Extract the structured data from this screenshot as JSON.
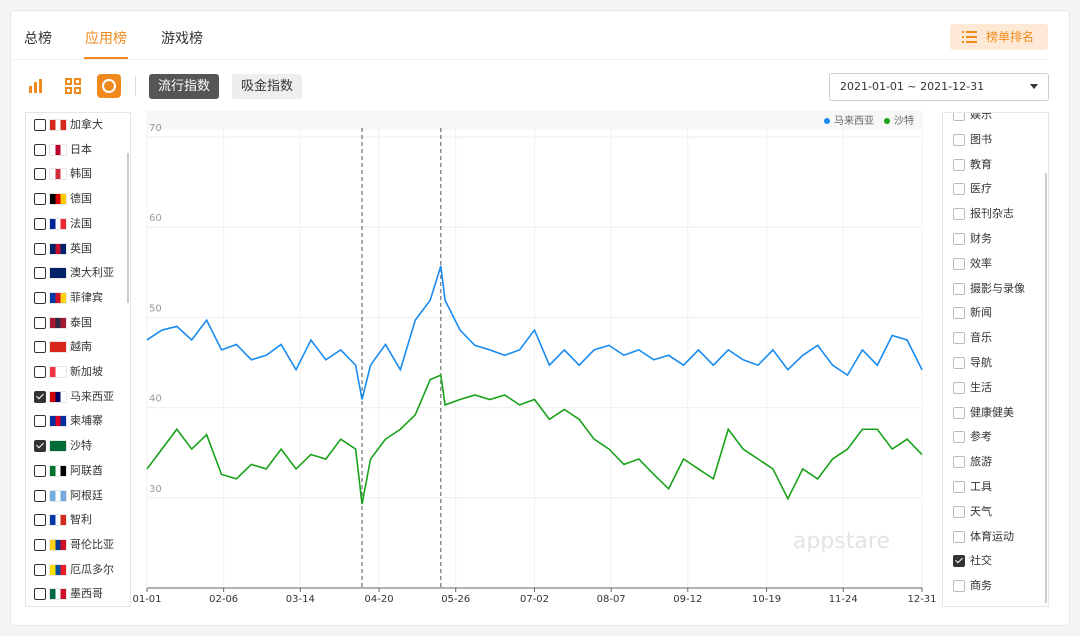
{
  "tabs": [
    "总榜",
    "应用榜",
    "游戏榜"
  ],
  "active_tab": 1,
  "rank_button": "榜单排名",
  "index_buttons": [
    "流行指数",
    "吸金指数"
  ],
  "active_index": 0,
  "date_range": "2021-01-01 ~ 2021-12-31",
  "countries": [
    {
      "name": "加拿大",
      "checked": false
    },
    {
      "name": "日本",
      "checked": false
    },
    {
      "name": "韩国",
      "checked": false
    },
    {
      "name": "德国",
      "checked": false
    },
    {
      "name": "法国",
      "checked": false
    },
    {
      "name": "英国",
      "checked": false
    },
    {
      "name": "澳大利亚",
      "checked": false
    },
    {
      "name": "菲律宾",
      "checked": false
    },
    {
      "name": "泰国",
      "checked": false
    },
    {
      "name": "越南",
      "checked": false
    },
    {
      "name": "新加坡",
      "checked": false
    },
    {
      "name": "马来西亚",
      "checked": true
    },
    {
      "name": "柬埔寨",
      "checked": false
    },
    {
      "name": "沙特",
      "checked": true
    },
    {
      "name": "阿联酋",
      "checked": false
    },
    {
      "name": "阿根廷",
      "checked": false
    },
    {
      "name": "智利",
      "checked": false
    },
    {
      "name": "哥伦比亚",
      "checked": false
    },
    {
      "name": "厄瓜多尔",
      "checked": false
    },
    {
      "name": "墨西哥",
      "checked": false
    }
  ],
  "app_categories": [
    {
      "name": "娱乐",
      "checked": false
    },
    {
      "name": "图书",
      "checked": false
    },
    {
      "name": "教育",
      "checked": false
    },
    {
      "name": "医疗",
      "checked": false
    },
    {
      "name": "报刊杂志",
      "checked": false
    },
    {
      "name": "财务",
      "checked": false
    },
    {
      "name": "效率",
      "checked": false
    },
    {
      "name": "摄影与录像",
      "checked": false
    },
    {
      "name": "新闻",
      "checked": false
    },
    {
      "name": "音乐",
      "checked": false
    },
    {
      "name": "导航",
      "checked": false
    },
    {
      "name": "生活",
      "checked": false
    },
    {
      "name": "健康健美",
      "checked": false
    },
    {
      "name": "参考",
      "checked": false
    },
    {
      "name": "旅游",
      "checked": false
    },
    {
      "name": "工具",
      "checked": false
    },
    {
      "name": "天气",
      "checked": false
    },
    {
      "name": "体育运动",
      "checked": false
    },
    {
      "name": "社交",
      "checked": true
    },
    {
      "name": "商务",
      "checked": false
    }
  ],
  "watermark": "appstare",
  "chart_data": {
    "type": "line",
    "x": [
      "01-01",
      "01-08",
      "01-15",
      "01-22",
      "01-29",
      "02-05",
      "02-12",
      "02-19",
      "02-26",
      "03-05",
      "03-12",
      "03-19",
      "03-26",
      "04-02",
      "04-09",
      "04-12",
      "04-16",
      "04-23",
      "04-30",
      "05-07",
      "05-14",
      "05-19",
      "05-21",
      "05-28",
      "06-04",
      "06-11",
      "06-18",
      "06-25",
      "07-02",
      "07-09",
      "07-16",
      "07-23",
      "07-30",
      "08-06",
      "08-13",
      "08-20",
      "08-27",
      "09-03",
      "09-10",
      "09-17",
      "09-24",
      "10-01",
      "10-08",
      "10-15",
      "10-22",
      "10-29",
      "11-05",
      "11-12",
      "11-19",
      "11-26",
      "12-03",
      "12-10",
      "12-17",
      "12-24",
      "12-31"
    ],
    "series": [
      {
        "name": "马来西亚",
        "color": "#1a8cf0",
        "values": [
          47.5,
          48.6,
          49,
          47.5,
          49.7,
          46.4,
          47,
          45.3,
          45.8,
          47,
          44.2,
          47.5,
          45.3,
          46.4,
          44.7,
          40.9,
          44.7,
          47,
          44.2,
          49.7,
          51.9,
          55.7,
          51.9,
          48.6,
          46.9,
          46.4,
          45.8,
          46.4,
          48.6,
          44.7,
          46.4,
          44.7,
          46.4,
          46.9,
          45.8,
          46.4,
          45.3,
          45.8,
          44.7,
          46.4,
          44.7,
          46.4,
          45.3,
          44.7,
          46.4,
          44.2,
          45.8,
          46.9,
          44.7,
          43.6,
          46.4,
          44.7,
          48,
          47.5,
          44.2
        ]
      },
      {
        "name": "沙特",
        "color": "#1aa11a",
        "values": [
          33.2,
          35.4,
          37.6,
          35.4,
          37,
          32.6,
          32.1,
          33.7,
          33.2,
          35.4,
          33.2,
          34.8,
          34.3,
          36.5,
          35.4,
          29.3,
          34.3,
          36.5,
          37.6,
          39.2,
          43.1,
          43.6,
          40.3,
          40.9,
          41.4,
          40.9,
          41.4,
          40.3,
          40.9,
          38.7,
          39.8,
          38.7,
          36.5,
          35.4,
          33.7,
          34.3,
          32.6,
          31,
          34.3,
          33.2,
          32.1,
          37.6,
          35.4,
          34.3,
          33.2,
          29.9,
          33.2,
          32.1,
          34.3,
          35.4,
          37.6,
          37.6,
          35.4,
          36.5,
          34.8
        ]
      }
    ],
    "vlines": [
      "04-12",
      "05-19"
    ],
    "ylim": [
      20,
      71
    ],
    "yticks": [
      30,
      40,
      50,
      60,
      70
    ],
    "xticks": [
      "01-01",
      "02-06",
      "03-14",
      "04-20",
      "05-26",
      "07-02",
      "08-07",
      "09-12",
      "10-19",
      "11-24",
      "12-31"
    ],
    "grid": true,
    "legend": "top-right"
  }
}
